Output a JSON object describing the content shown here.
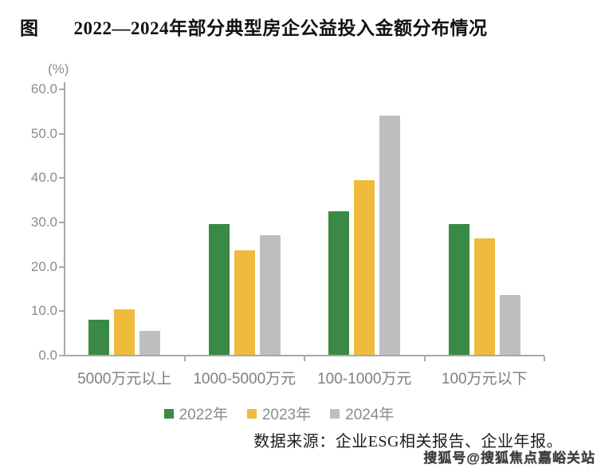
{
  "title": {
    "prefix": "图",
    "text": "2022—2024年部分典型房企公益投入金额分布情况"
  },
  "chart_data": {
    "type": "bar",
    "title": "2022—2024年部分典型房企公益投入金额分布情况",
    "categories": [
      "5000万元以上",
      "1000-5000万元",
      "100-1000万元",
      "100万元以下"
    ],
    "series": [
      {
        "name": "2022年",
        "color": "#3a8a46",
        "values": [
          7.9,
          29.5,
          32.4,
          29.5
        ]
      },
      {
        "name": "2023年",
        "color": "#eebb3c",
        "values": [
          10.3,
          23.6,
          39.4,
          26.2
        ]
      },
      {
        "name": "2024年",
        "color": "#bebec0",
        "values": [
          5.3,
          26.9,
          53.9,
          13.4
        ]
      }
    ],
    "xlabel": "",
    "ylabel": "(%)",
    "ylim": [
      0,
      60
    ],
    "ytick_step": 10,
    "ytick_decimals": 1,
    "grid": false,
    "legend_position": "bottom"
  },
  "source_note": "数据来源：企业ESG相关报告、企业年报。",
  "watermark": "搜狐号@搜狐焦点嘉峪关站",
  "colors": {
    "axis": "#a9a9aa",
    "tick_label": "#8c8c8c",
    "category_label": "#7f7f7f",
    "title_text": "#111111",
    "source_text": "#1d1d1d",
    "series_2022": "#3a8a46",
    "series_2023": "#eebb3c",
    "series_2024": "#bebec0",
    "background": "#ffffff"
  }
}
